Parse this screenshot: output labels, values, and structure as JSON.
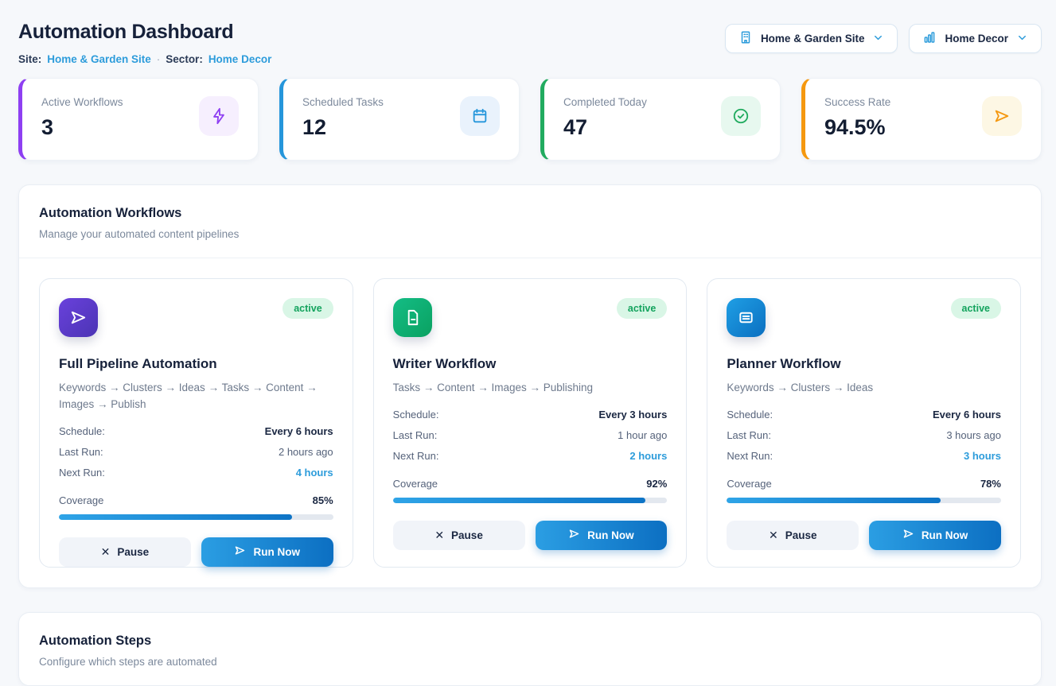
{
  "page": {
    "title": "Automation Dashboard",
    "site_label": "Site:",
    "site_value": "Home & Garden Site",
    "separator": "·",
    "sector_label": "Sector:",
    "sector_value": "Home Decor"
  },
  "header_controls": {
    "site_dropdown": {
      "label": "Home & Garden Site",
      "icon": "building-icon"
    },
    "sector_dropdown": {
      "label": "Home Decor",
      "icon": "bar-chart-icon"
    }
  },
  "colors": {
    "link_blue": "#2d9cdb",
    "badge_green_bg": "#d9f6e6",
    "badge_green_text": "#13a35d",
    "progress_blue": "#1a8fd9",
    "stat_accents": [
      "#8e3ff2",
      "#2596db",
      "#21ab5f",
      "#f5980f"
    ]
  },
  "stats": [
    {
      "label": "Active Workflows",
      "value": "3",
      "icon": "lightning-icon",
      "accent": "#8e3ff2"
    },
    {
      "label": "Scheduled Tasks",
      "value": "12",
      "icon": "calendar-icon",
      "accent": "#2596db"
    },
    {
      "label": "Completed Today",
      "value": "47",
      "icon": "check-circle-icon",
      "accent": "#21ab5f"
    },
    {
      "label": "Success Rate",
      "value": "94.5%",
      "icon": "send-icon",
      "accent": "#f5980f"
    }
  ],
  "workflows_section": {
    "title": "Automation Workflows",
    "subtitle": "Manage your automated content pipelines",
    "cards": [
      {
        "title": "Full Pipeline Automation",
        "status": "active",
        "description": "Keywords → Clusters → Ideas → Tasks → Content → Images → Publish",
        "schedule_label": "Schedule:",
        "schedule": "Every 6 hours",
        "last_run_label": "Last Run:",
        "last_run": "2 hours ago",
        "next_run_label": "Next Run:",
        "next_run": "4 hours",
        "coverage_label": "Coverage",
        "coverage": "85%",
        "coverage_pct": 85,
        "pause_label": "Pause",
        "run_label": "Run Now",
        "icon": "send-icon"
      },
      {
        "title": "Writer Workflow",
        "status": "active",
        "description": "Tasks → Content → Images → Publishing",
        "schedule_label": "Schedule:",
        "schedule": "Every 3 hours",
        "last_run_label": "Last Run:",
        "last_run": "1 hour ago",
        "next_run_label": "Next Run:",
        "next_run": "2 hours",
        "coverage_label": "Coverage",
        "coverage": "92%",
        "coverage_pct": 92,
        "pause_label": "Pause",
        "run_label": "Run Now",
        "icon": "document-icon"
      },
      {
        "title": "Planner Workflow",
        "status": "active",
        "description": "Keywords → Clusters → Ideas",
        "schedule_label": "Schedule:",
        "schedule": "Every 6 hours",
        "last_run_label": "Last Run:",
        "last_run": "3 hours ago",
        "next_run_label": "Next Run:",
        "next_run": "3 hours",
        "coverage_label": "Coverage",
        "coverage": "78%",
        "coverage_pct": 78,
        "pause_label": "Pause",
        "run_label": "Run Now",
        "icon": "list-icon"
      }
    ]
  },
  "steps_section": {
    "title": "Automation Steps",
    "subtitle": "Configure which steps are automated"
  }
}
